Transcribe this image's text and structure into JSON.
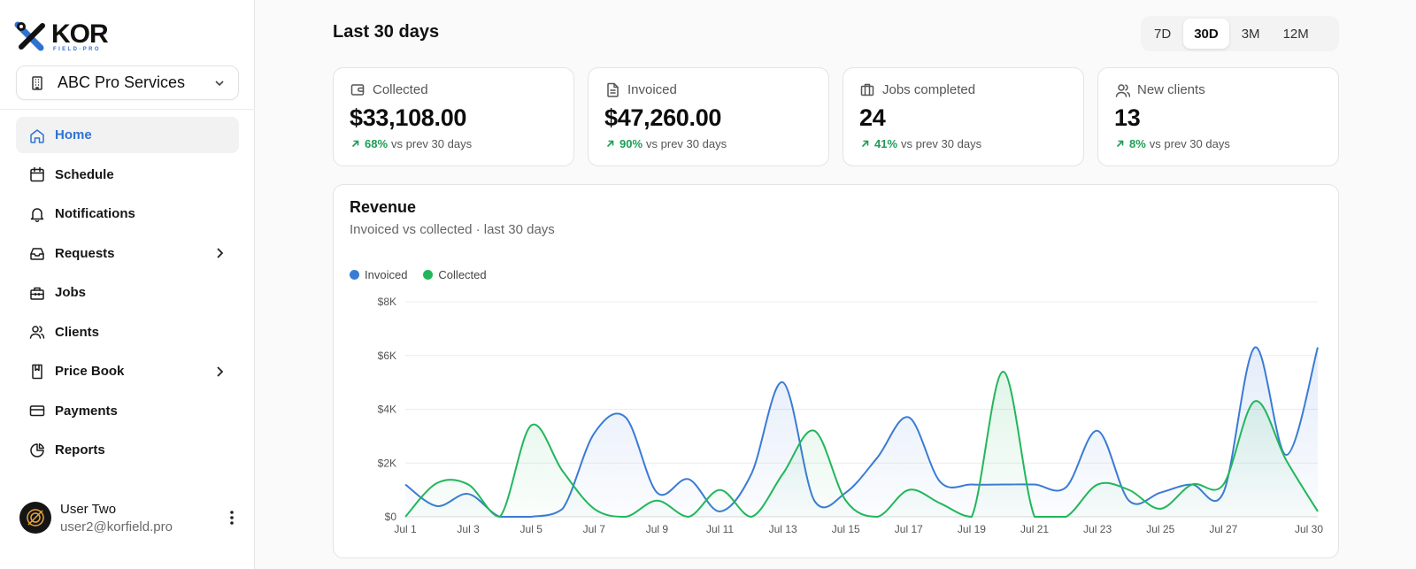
{
  "brand": {
    "name": "KOR",
    "tagline": "FIELD·PRO",
    "accent": "#2f73d0"
  },
  "org": {
    "label": "ABC Pro Services"
  },
  "sidebar": {
    "items": [
      {
        "label": "Home",
        "icon": "home-icon",
        "active": true,
        "chevron": false
      },
      {
        "label": "Schedule",
        "icon": "calendar-icon",
        "active": false,
        "chevron": false
      },
      {
        "label": "Notifications",
        "icon": "bell-icon",
        "active": false,
        "chevron": false
      },
      {
        "label": "Requests",
        "icon": "inbox-icon",
        "active": false,
        "chevron": true
      },
      {
        "label": "Jobs",
        "icon": "toolbox-icon",
        "active": false,
        "chevron": false
      },
      {
        "label": "Clients",
        "icon": "users-icon",
        "active": false,
        "chevron": false
      },
      {
        "label": "Price Book",
        "icon": "book-icon",
        "active": false,
        "chevron": true
      },
      {
        "label": "Payments",
        "icon": "credit-card-icon",
        "active": false,
        "chevron": false
      },
      {
        "label": "Reports",
        "icon": "pie-chart-icon",
        "active": false,
        "chevron": false
      },
      {
        "label": "",
        "icon": "partially-hidden-icon",
        "active": false,
        "chevron": false
      }
    ]
  },
  "user": {
    "name": "User Two",
    "email": "user2@korfield.pro"
  },
  "header": {
    "title": "Last 30 days"
  },
  "range_tabs": [
    {
      "label": "7D",
      "active": false
    },
    {
      "label": "30D",
      "active": true
    },
    {
      "label": "3M",
      "active": false
    },
    {
      "label": "12M",
      "active": false
    }
  ],
  "stats": [
    {
      "label": "Collected",
      "icon": "wallet-icon",
      "value": "$33,108.00",
      "delta": "68%",
      "delta_text": "vs prev 30 days"
    },
    {
      "label": "Invoiced",
      "icon": "document-icon",
      "value": "$47,260.00",
      "delta": "90%",
      "delta_text": "vs prev 30 days"
    },
    {
      "label": "Jobs completed",
      "icon": "briefcase-icon",
      "value": "24",
      "delta": "41%",
      "delta_text": "vs prev 30 days"
    },
    {
      "label": "New clients",
      "icon": "users-icon",
      "value": "13",
      "delta": "8%",
      "delta_text": "vs prev 30 days"
    }
  ],
  "chart_data": {
    "type": "line",
    "title": "Revenue",
    "subtitle": "Invoiced vs collected · last 30 days",
    "xlabel": "",
    "ylabel": "",
    "categories": [
      "Jul 1",
      "Jul 2",
      "Jul 3",
      "Jul 4",
      "Jul 5",
      "Jul 6",
      "Jul 7",
      "Jul 8",
      "Jul 9",
      "Jul 10",
      "Jul 11",
      "Jul 12",
      "Jul 13",
      "Jul 14",
      "Jul 15",
      "Jul 16",
      "Jul 17",
      "Jul 18",
      "Jul 19",
      "Jul 20",
      "Jul 21",
      "Jul 22",
      "Jul 23",
      "Jul 24",
      "Jul 25",
      "Jul 26",
      "Jul 27",
      "Jul 28",
      "Jul 29",
      "Jul 30"
    ],
    "x_tick_labels": [
      "Jul 1",
      "Jul 3",
      "Jul 5",
      "Jul 7",
      "Jul 9",
      "Jul 11",
      "Jul 13",
      "Jul 15",
      "Jul 17",
      "Jul 19",
      "Jul 21",
      "Jul 23",
      "Jul 25",
      "Jul 27",
      "Jul 30"
    ],
    "y_ticks": [
      0,
      2000,
      4000,
      6000,
      8000
    ],
    "y_tick_labels": [
      "$0",
      "$2K",
      "$4K",
      "$6K",
      "$8K"
    ],
    "ylim": [
      0,
      8000
    ],
    "grid": true,
    "legend_position": "top-left",
    "series": [
      {
        "name": "Invoiced",
        "color": "#3a7bd5",
        "values": [
          1200,
          400,
          850,
          0,
          0,
          300,
          3100,
          3700,
          900,
          1400,
          200,
          1600,
          5000,
          600,
          900,
          2200,
          3700,
          1300,
          1200,
          1200,
          1200,
          1100,
          3200,
          600,
          900,
          1200,
          900,
          6300,
          2300,
          6300
        ]
      },
      {
        "name": "Collected",
        "color": "#22b65b",
        "values": [
          0,
          1250,
          1200,
          0,
          3400,
          1700,
          300,
          0,
          600,
          0,
          1000,
          0,
          1600,
          3200,
          600,
          0,
          1000,
          500,
          0,
          5400,
          0,
          0,
          1200,
          1000,
          300,
          1200,
          1200,
          4300,
          2100,
          200
        ]
      }
    ]
  }
}
